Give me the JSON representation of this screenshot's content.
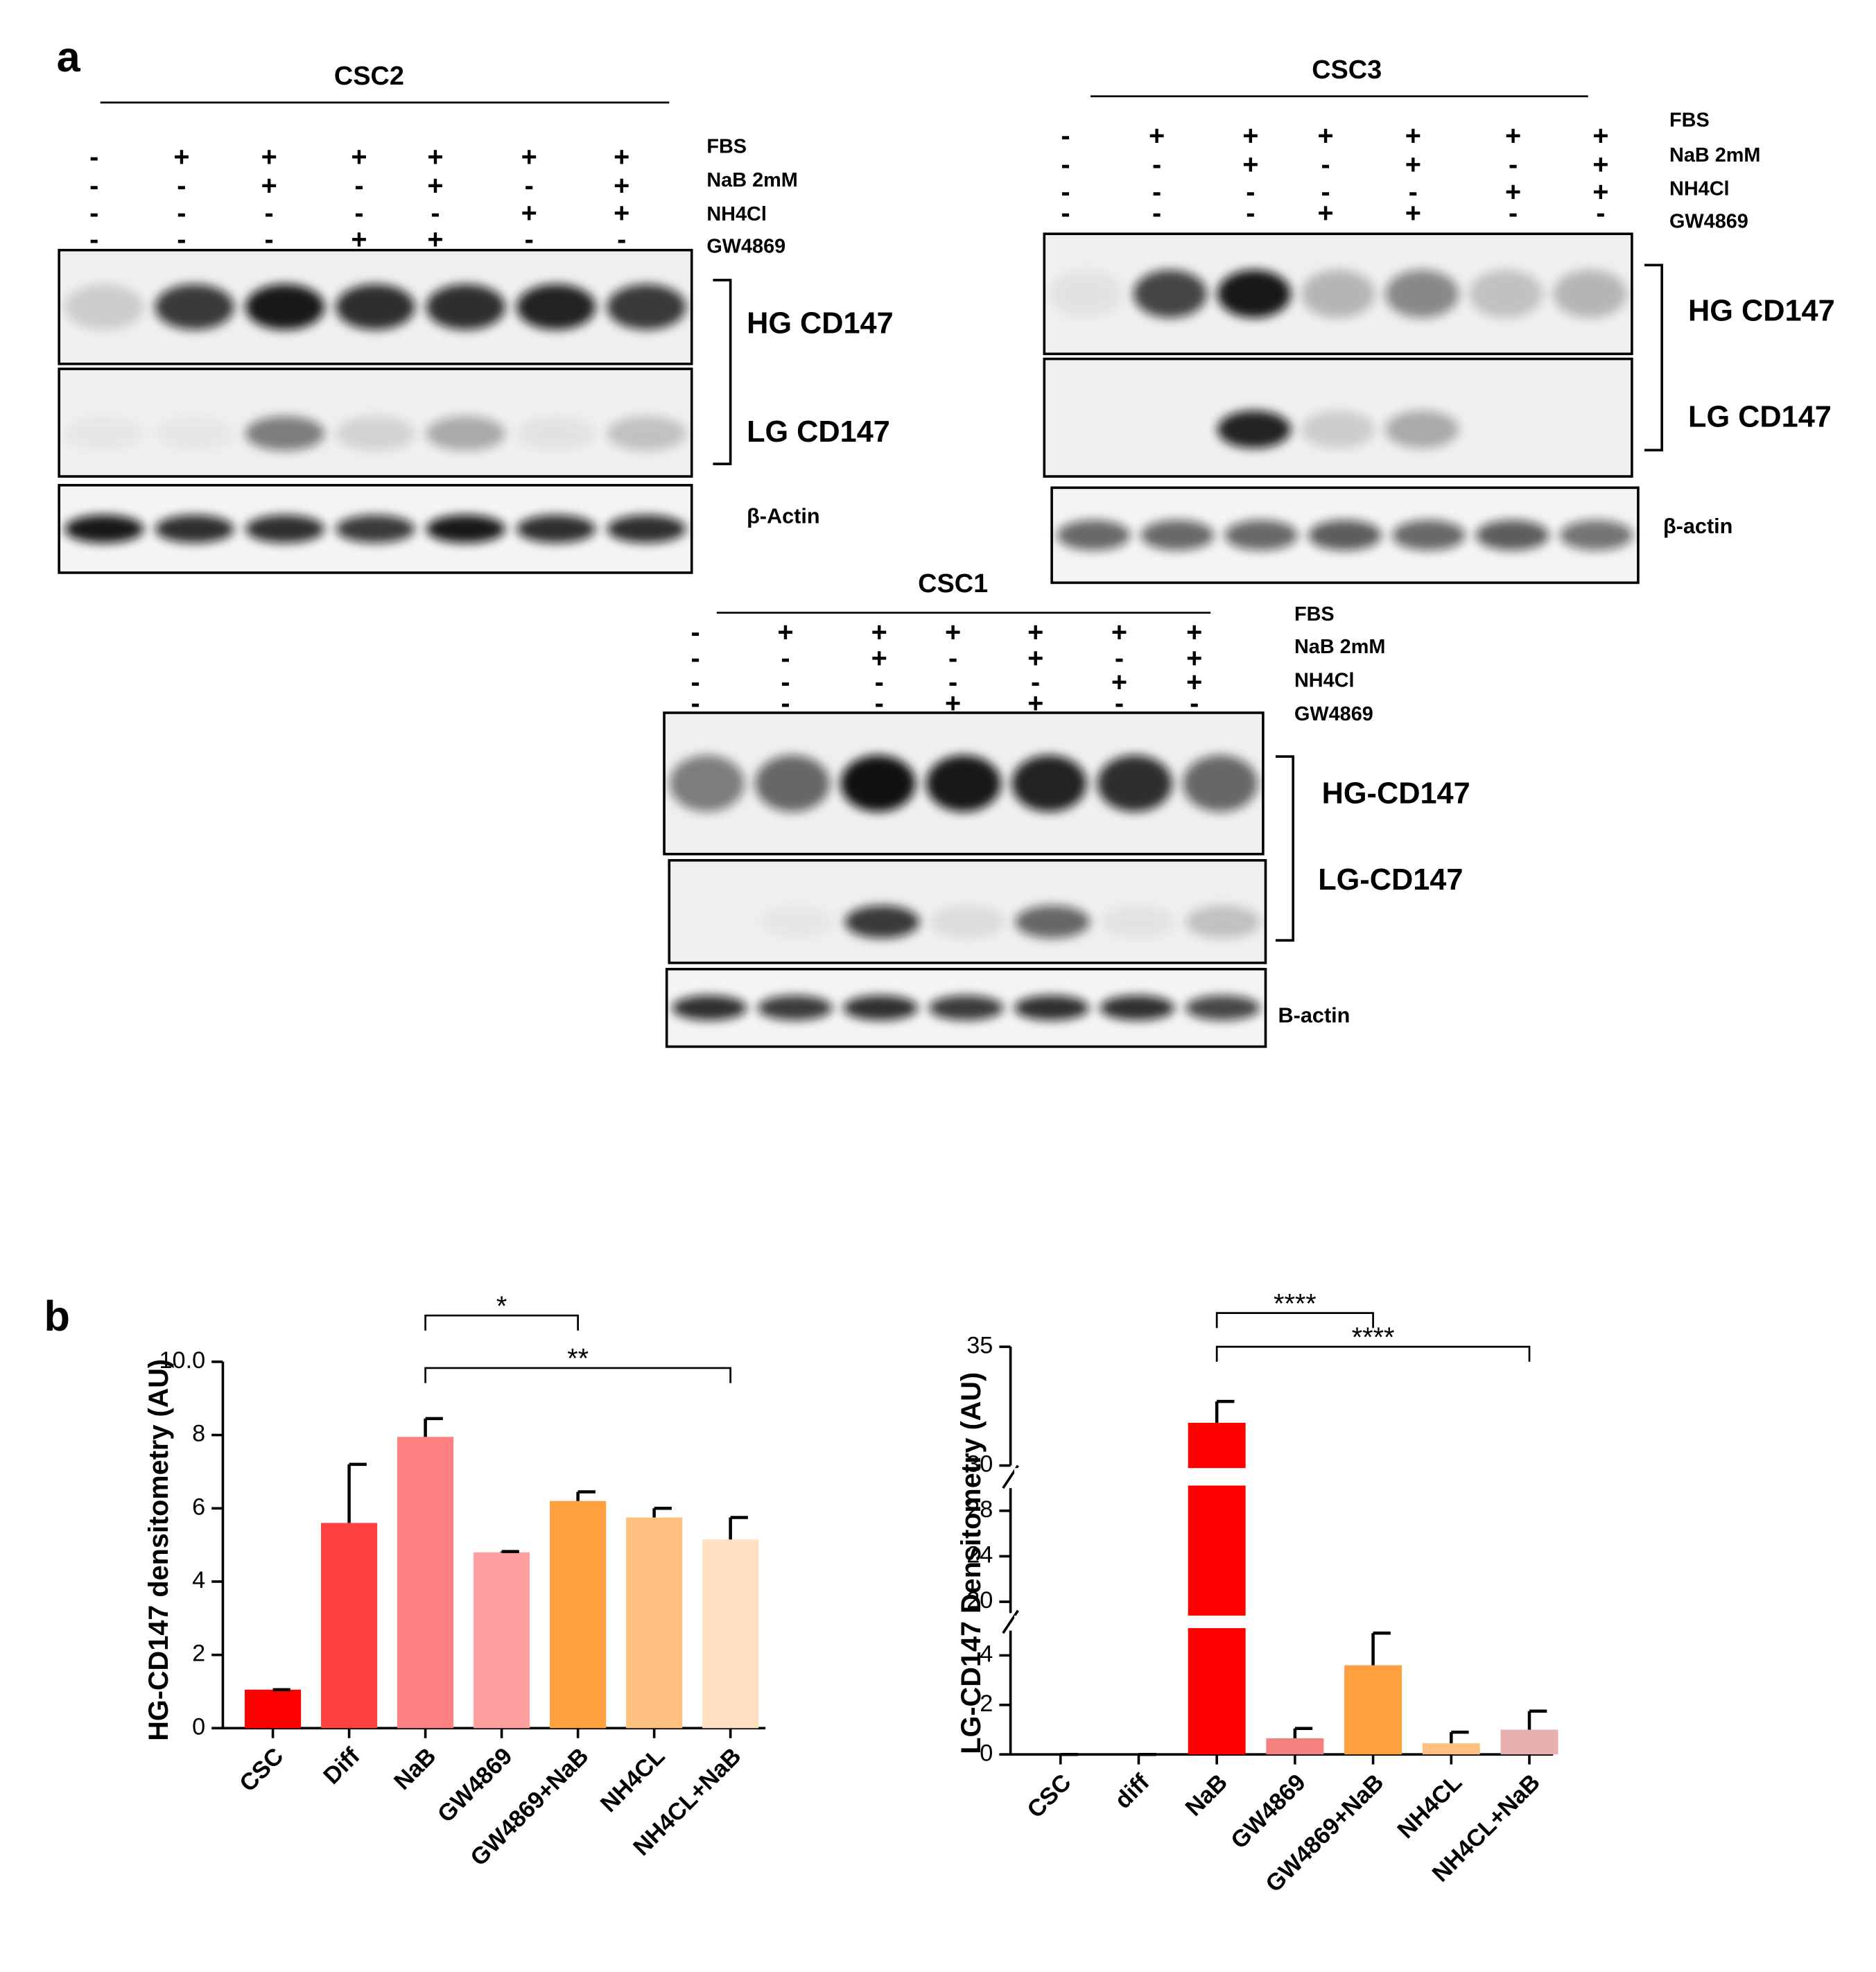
{
  "panel_labels": [
    "a",
    "b"
  ],
  "blots": [
    {
      "title": "CSC2",
      "rows": [
        {
          "label": "FBS",
          "signs": [
            "-",
            "+",
            "+",
            "+",
            "+",
            "+",
            "+"
          ]
        },
        {
          "label": "NaB 2mM",
          "signs": [
            "-",
            "-",
            "+",
            "-",
            "+",
            "-",
            "+"
          ]
        },
        {
          "label": "NH4Cl",
          "signs": [
            "-",
            "-",
            "-",
            "-",
            "-",
            "+",
            "+"
          ]
        },
        {
          "label": "GW4869",
          "signs": [
            "-",
            "-",
            "-",
            "+",
            "+",
            "-",
            "-"
          ]
        }
      ],
      "bands": [
        "HG CD147",
        "LG CD147",
        "β-Actin"
      ]
    },
    {
      "title": "CSC3",
      "rows": [
        {
          "label": "FBS",
          "signs": [
            "-",
            "+",
            "+",
            "+",
            "+",
            "+",
            "+"
          ]
        },
        {
          "label": "NaB 2mM",
          "signs": [
            "-",
            "-",
            "+",
            "-",
            "+",
            "-",
            "+"
          ]
        },
        {
          "label": "NH4Cl",
          "signs": [
            "-",
            "-",
            "-",
            "-",
            "-",
            "+",
            "+"
          ]
        },
        {
          "label": "GW4869",
          "signs": [
            "-",
            "-",
            "-",
            "+",
            "+",
            "-",
            "-"
          ]
        }
      ],
      "bands": [
        "HG CD147",
        "LG CD147",
        "β-actin"
      ]
    },
    {
      "title": "CSC1",
      "rows": [
        {
          "label": "FBS",
          "signs": [
            "-",
            "+",
            "+",
            "+",
            "+",
            "+",
            "+"
          ]
        },
        {
          "label": "NaB 2mM",
          "signs": [
            "-",
            "-",
            "+",
            "-",
            "+",
            "-",
            "+"
          ]
        },
        {
          "label": "NH4Cl",
          "signs": [
            "-",
            "-",
            "-",
            "-",
            "-",
            "+",
            "+"
          ]
        },
        {
          "label": "GW4869",
          "signs": [
            "-",
            "-",
            "-",
            "+",
            "+",
            "-",
            "-"
          ]
        }
      ],
      "bands": [
        "HG-CD147",
        "LG-CD147",
        "B-actin"
      ]
    }
  ],
  "chart_data": [
    {
      "type": "bar",
      "ylabel": "HG-CD147 densitometry (AU)",
      "categories": [
        "CSC",
        "Diff",
        "NaB",
        "GW4869",
        "GW4869+NaB",
        "NH4CL",
        "NH4CL+NaB"
      ],
      "values": [
        1.05,
        5.6,
        7.95,
        4.8,
        6.2,
        5.75,
        5.15
      ],
      "errors": [
        0,
        1.6,
        0.5,
        0.02,
        0.25,
        0.25,
        0.6
      ],
      "colors": [
        "#ff0000",
        "#ff4040",
        "#ff8080",
        "#ffa0a0",
        "#ffa040",
        "#ffc080",
        "#ffe0c0"
      ],
      "ylim": [
        0,
        10
      ],
      "yticks": [
        0,
        2,
        4,
        6,
        8,
        {
          "value": 10,
          "label": "10.0"
        }
      ],
      "comparisons": [
        {
          "groups": [
            "NaB",
            "GW4869+NaB"
          ],
          "label": "*"
        },
        {
          "groups": [
            "NaB",
            "NH4CL+NaB"
          ],
          "label": "**"
        }
      ]
    },
    {
      "type": "broken-bar",
      "ylabel": "LG-CD147 Densitometry (AU)",
      "categories": [
        "CSC",
        "diff",
        "NaB",
        "GW4869",
        "GW4869+NaB",
        "NH4CL",
        "NH4CL+NaB"
      ],
      "values": [
        0,
        0,
        31.8,
        0.65,
        3.6,
        0.45,
        1.0
      ],
      "errors": [
        0,
        0,
        0.9,
        0.4,
        1.3,
        0.45,
        0.75
      ],
      "colors": [
        "#ff0000",
        "#ff0000",
        "#ff0000",
        "#f48080",
        "#ffa040",
        "#ffc080",
        "#e8b0b0"
      ],
      "y_segments": [
        {
          "ylim": [
            0,
            5
          ],
          "yticks": [
            0,
            2,
            4
          ]
        },
        {
          "ylim": [
            19,
            30
          ],
          "yticks": [
            20,
            24,
            28
          ]
        },
        {
          "ylim": [
            30,
            35
          ],
          "yticks": [
            30,
            35
          ]
        }
      ],
      "comparisons": [
        {
          "groups": [
            "NaB",
            "GW4869+NaB"
          ],
          "label": "****"
        },
        {
          "groups": [
            "NaB",
            "NH4CL+NaB"
          ],
          "label": "****"
        }
      ]
    }
  ]
}
